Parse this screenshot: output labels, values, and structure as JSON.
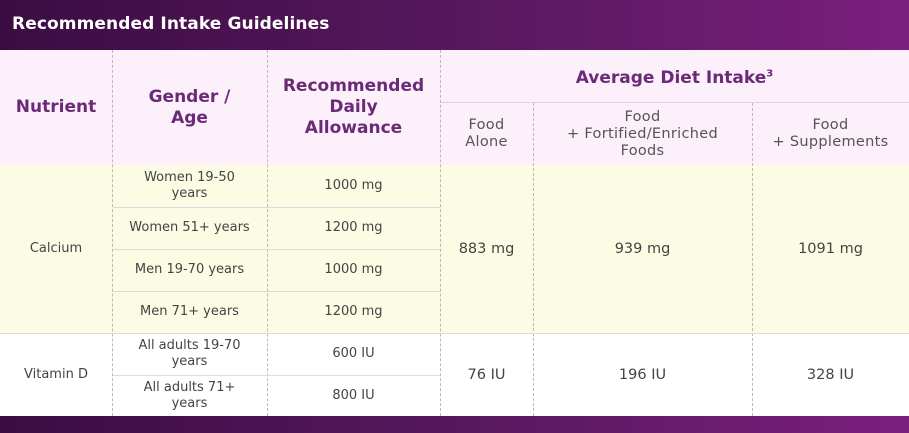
{
  "title": "Recommended Intake Guidelines",
  "headers": {
    "nutrient": "Nutrient",
    "gender_age": [
      "Gender /",
      "Age"
    ],
    "rda": [
      "Recommended",
      "Daily",
      "Allowance"
    ],
    "avg_intake": "Average Diet Intake",
    "avg_intake_sup": "3",
    "sub": {
      "food_alone": [
        "Food",
        "Alone"
      ],
      "fortified": [
        "Food",
        "+ Fortified/Enriched",
        "Foods"
      ],
      "supplements": [
        "Food",
        "+ Supplements"
      ]
    }
  },
  "rows": [
    {
      "nutrient": "Calcium",
      "groups": [
        {
          "label": [
            "Women 19-50",
            "years"
          ],
          "rda": "1000 mg"
        },
        {
          "label": [
            "Women 51+ years"
          ],
          "rda": "1200 mg"
        },
        {
          "label": [
            "Men 19-70 years"
          ],
          "rda": "1000 mg"
        },
        {
          "label": [
            "Men 71+ years"
          ],
          "rda": "1200 mg"
        }
      ],
      "food_alone": "883 mg",
      "fortified": "939 mg",
      "supplements": "1091 mg"
    },
    {
      "nutrient": "Vitamin D",
      "groups": [
        {
          "label": [
            "All adults 19-70",
            "years"
          ],
          "rda": "600 IU"
        },
        {
          "label": [
            "All adults 71+",
            "years"
          ],
          "rda": "800 IU"
        }
      ],
      "food_alone": "76 IU",
      "fortified": "196 IU",
      "supplements": "328 IU"
    }
  ],
  "colors": {
    "title_bar": "#5a1860",
    "header_text": "#6b2a77",
    "header_bg": "#fcf0fa",
    "calcium_bg": "#fcfbe3"
  }
}
